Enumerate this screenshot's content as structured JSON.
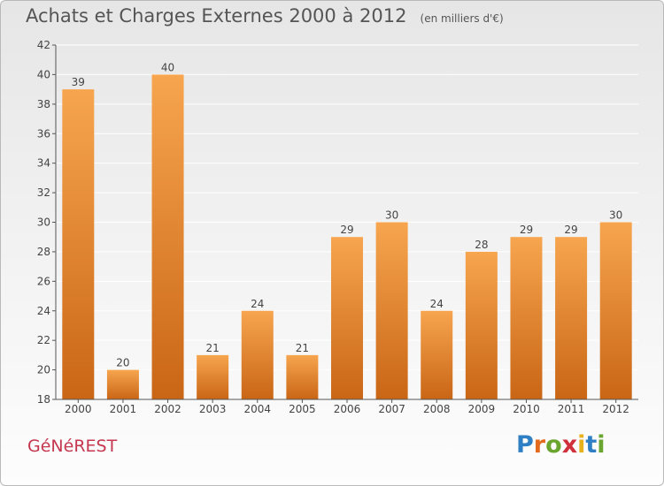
{
  "title": "Achats et Charges Externes 2000 à 2012",
  "unit": "(en milliers d'€)",
  "commune": "GéNéREST",
  "logo": {
    "letters": [
      "P",
      "r",
      "o",
      "x",
      "i",
      "t",
      "i"
    ]
  },
  "colors": {
    "bar_light": "#f7a54f",
    "bar_dark": "#c96616",
    "grid": "#ffffff",
    "axis": "#555555"
  },
  "chart_data": {
    "type": "bar",
    "title": "Achats et Charges Externes 2000 à 2012",
    "subtitle": "(en milliers d'€)",
    "xlabel": "",
    "ylabel": "",
    "categories": [
      "2000",
      "2001",
      "2002",
      "2003",
      "2004",
      "2005",
      "2006",
      "2007",
      "2008",
      "2009",
      "2010",
      "2011",
      "2012"
    ],
    "values": [
      39,
      20,
      40,
      21,
      24,
      21,
      29,
      30,
      24,
      28,
      29,
      29,
      30
    ],
    "ylim": [
      18,
      42
    ],
    "yticks": [
      18,
      20,
      22,
      24,
      26,
      28,
      30,
      32,
      34,
      36,
      38,
      40,
      42
    ],
    "grid": true,
    "data_labels": true
  }
}
